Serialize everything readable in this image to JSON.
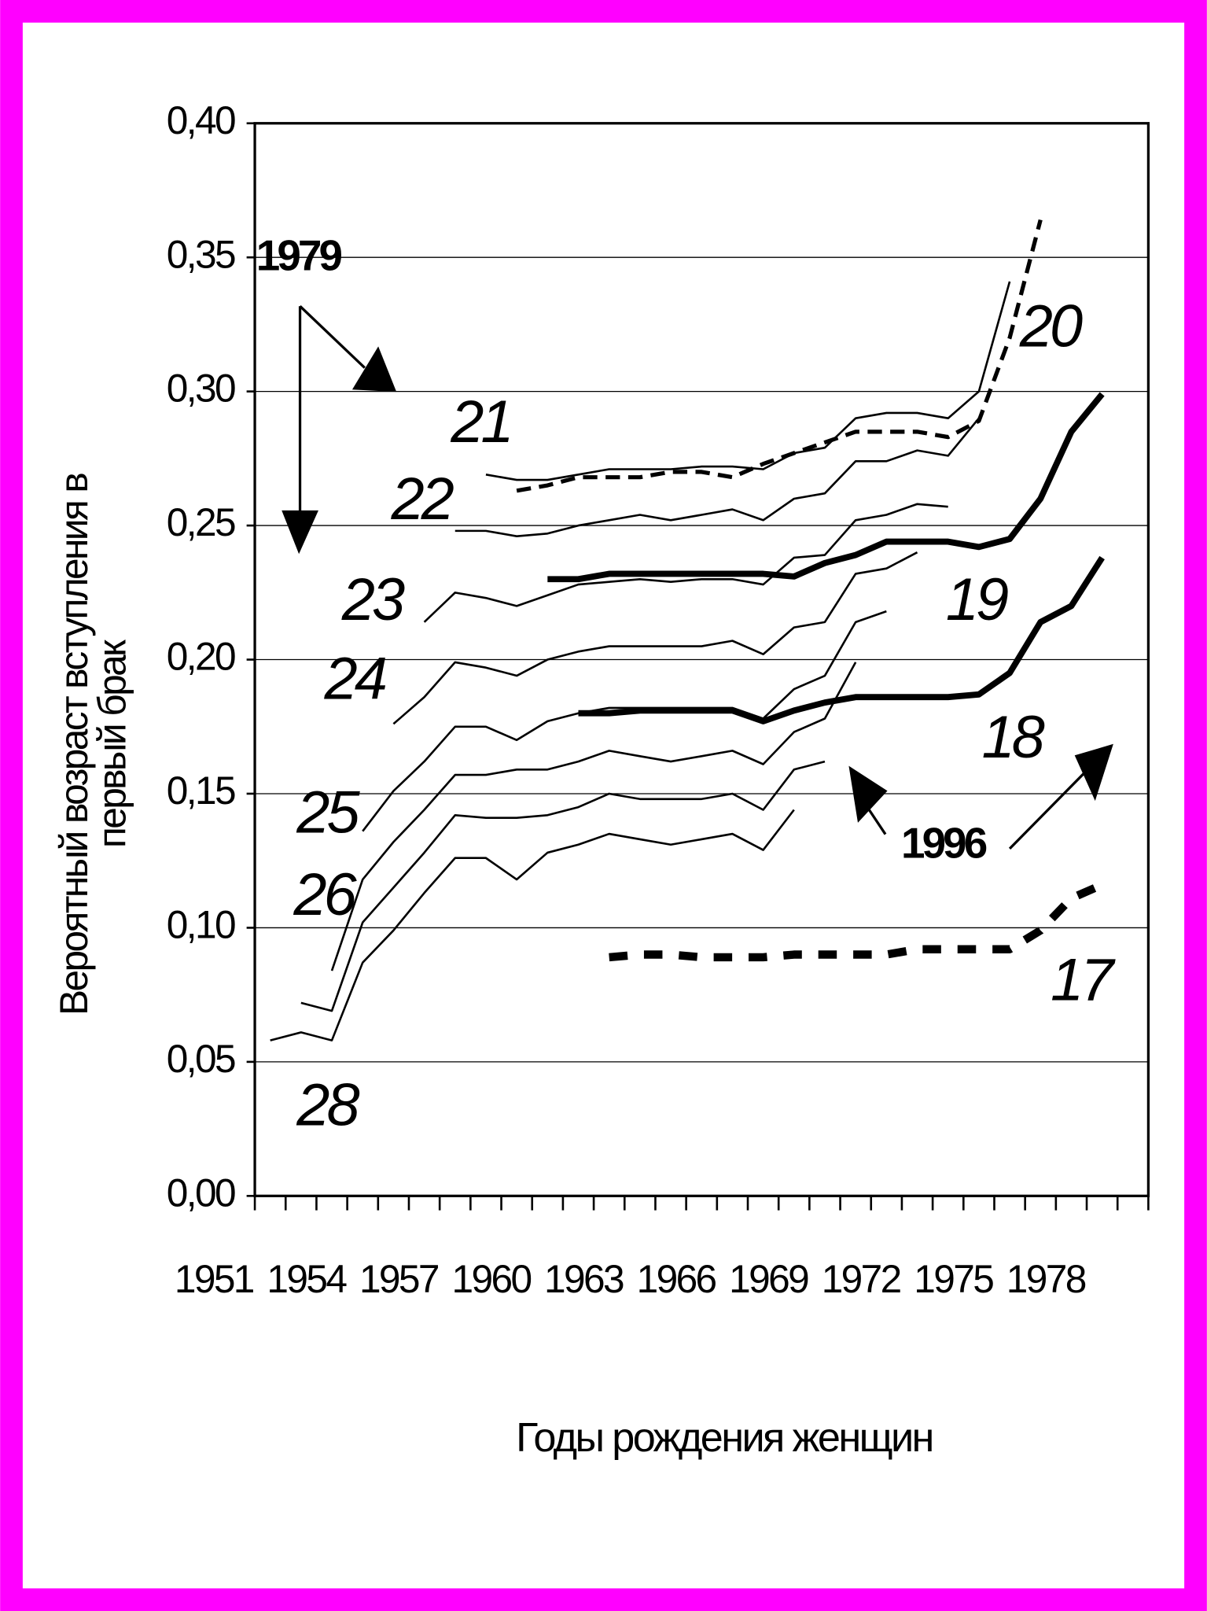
{
  "chart_data": {
    "type": "line",
    "y_label": [
      "Вероятный возраст вступления в",
      "первый брак"
    ],
    "x_label": "Годы рождения женщин",
    "categories": [
      "1951",
      null,
      null,
      "1954",
      null,
      null,
      "1957",
      null,
      null,
      "1960",
      null,
      null,
      "1963",
      null,
      null,
      "1966",
      null,
      null,
      "1969",
      null,
      null,
      "1972",
      null,
      null,
      "1975",
      null,
      null,
      "1978",
      null
    ],
    "ylim": [
      0,
      0.4
    ],
    "yticks": [
      {
        "value": 0,
        "label": "0,00"
      },
      {
        "value": 0.05,
        "label": "0,05"
      },
      {
        "value": 0.1,
        "label": "0,10"
      },
      {
        "value": 0.15,
        "label": "0,15"
      },
      {
        "value": 0.2,
        "label": "0,20"
      },
      {
        "value": 0.25,
        "label": "0,25"
      },
      {
        "value": 0.3,
        "label": "0,30"
      },
      {
        "value": 0.35,
        "label": "0,35"
      },
      {
        "value": 0.4,
        "label": "0,40"
      }
    ],
    "grid": true,
    "series": [
      {
        "name": "28",
        "color": "#000000",
        "line_width": 2,
        "line_style": "solid",
        "values": [
          0.058,
          0.061,
          0.058,
          0.087,
          0.099,
          0.113,
          0.126,
          0.126,
          0.118,
          0.128,
          0.131,
          0.135,
          0.133,
          0.131,
          0.133,
          0.135,
          0.129,
          0.144,
          null,
          null,
          null,
          null,
          null,
          null,
          null,
          null,
          null,
          null,
          null
        ]
      },
      {
        "color": "#000000",
        "line_width": 2,
        "line_style": "solid",
        "values": [
          null,
          0.072,
          0.069,
          0.102,
          0.115,
          0.128,
          0.142,
          0.141,
          0.141,
          0.142,
          0.145,
          0.15,
          0.148,
          0.148,
          0.148,
          0.15,
          0.144,
          0.159,
          0.162,
          null,
          null,
          null,
          null,
          null,
          null,
          null,
          null,
          null,
          null
        ]
      },
      {
        "name": "26",
        "color": "#000000",
        "line_width": 2,
        "line_style": "solid",
        "values": [
          null,
          null,
          0.084,
          0.118,
          0.132,
          0.144,
          0.157,
          0.157,
          0.159,
          0.159,
          0.162,
          0.166,
          0.164,
          0.162,
          0.164,
          0.166,
          0.161,
          0.173,
          0.178,
          0.199,
          null,
          null,
          null,
          null,
          null,
          null,
          null,
          null,
          null
        ]
      },
      {
        "name": "25",
        "color": "#000000",
        "line_width": 2,
        "line_style": "solid",
        "values": [
          null,
          null,
          null,
          0.136,
          0.151,
          0.162,
          0.175,
          0.175,
          0.17,
          0.177,
          0.18,
          0.182,
          0.182,
          0.182,
          0.182,
          0.182,
          0.178,
          0.189,
          0.194,
          0.214,
          0.218,
          null,
          null,
          null,
          null,
          null,
          null,
          null,
          null
        ]
      },
      {
        "name": "24",
        "color": "#000000",
        "line_width": 2,
        "line_style": "solid",
        "values": [
          null,
          null,
          null,
          null,
          0.176,
          0.186,
          0.199,
          0.197,
          0.194,
          0.2,
          0.203,
          0.205,
          0.205,
          0.205,
          0.205,
          0.207,
          0.202,
          0.212,
          0.214,
          0.232,
          0.234,
          0.24,
          null,
          null,
          null,
          null,
          null,
          null,
          null
        ]
      },
      {
        "name": "23",
        "color": "#000000",
        "line_width": 2,
        "line_style": "solid",
        "values": [
          null,
          null,
          null,
          null,
          null,
          0.214,
          0.225,
          0.223,
          0.22,
          0.224,
          0.228,
          0.229,
          0.23,
          0.229,
          0.23,
          0.23,
          0.228,
          0.238,
          0.239,
          0.252,
          0.254,
          0.258,
          0.257,
          null,
          null,
          null,
          null,
          null,
          null
        ]
      },
      {
        "name": "22",
        "color": "#000000",
        "line_width": 2,
        "line_style": "solid",
        "values": [
          null,
          null,
          null,
          null,
          null,
          null,
          0.248,
          0.248,
          0.246,
          0.247,
          0.25,
          0.252,
          0.254,
          0.252,
          0.254,
          0.256,
          0.252,
          0.26,
          0.262,
          0.274,
          0.274,
          0.278,
          0.276,
          0.29,
          null,
          null,
          null,
          null,
          null
        ]
      },
      {
        "name": "21",
        "color": "#000000",
        "line_width": 2,
        "line_style": "solid",
        "values": [
          null,
          null,
          null,
          null,
          null,
          null,
          null,
          0.269,
          0.267,
          0.267,
          0.269,
          0.271,
          0.271,
          0.271,
          0.272,
          0.272,
          0.271,
          0.277,
          0.279,
          0.29,
          0.292,
          0.292,
          0.29,
          0.3,
          0.341,
          null,
          null,
          null,
          null
        ]
      },
      {
        "name": "20",
        "color": "#000000",
        "line_width": 4,
        "line_style": "dashed",
        "values": [
          null,
          null,
          null,
          null,
          null,
          null,
          null,
          null,
          0.263,
          0.265,
          0.268,
          0.268,
          0.268,
          0.27,
          0.27,
          0.268,
          0.273,
          0.277,
          0.281,
          0.285,
          0.285,
          0.285,
          0.283,
          0.289,
          0.32,
          0.364,
          null,
          null,
          null
        ]
      },
      {
        "name": "19",
        "color": "#000000",
        "line_width": 6,
        "line_style": "solid",
        "values": [
          null,
          null,
          null,
          null,
          null,
          null,
          null,
          null,
          null,
          0.23,
          0.23,
          0.232,
          0.232,
          0.232,
          0.232,
          0.232,
          0.232,
          0.231,
          0.236,
          0.239,
          0.244,
          0.244,
          0.244,
          0.242,
          0.245,
          0.26,
          0.285,
          0.299,
          null
        ]
      },
      {
        "name": "18",
        "color": "#000000",
        "line_width": 6,
        "line_style": "solid",
        "values": [
          null,
          null,
          null,
          null,
          null,
          null,
          null,
          null,
          null,
          null,
          0.18,
          0.18,
          0.181,
          0.181,
          0.181,
          0.181,
          0.177,
          0.181,
          0.184,
          0.186,
          0.186,
          0.186,
          0.186,
          0.187,
          0.195,
          0.214,
          0.22,
          0.238,
          null
        ]
      },
      {
        "name": "17",
        "color": "#000000",
        "line_width": 8,
        "line_style": "dotted",
        "values": [
          null,
          null,
          null,
          null,
          null,
          null,
          null,
          null,
          null,
          null,
          null,
          0.089,
          0.09,
          0.09,
          0.089,
          0.089,
          0.089,
          0.09,
          0.09,
          0.09,
          0.09,
          0.092,
          0.092,
          0.092,
          0.092,
          0.099,
          0.111,
          0.116,
          null
        ]
      }
    ],
    "annotations": [
      {
        "text": "1979"
      },
      {
        "text": "1996"
      }
    ]
  }
}
